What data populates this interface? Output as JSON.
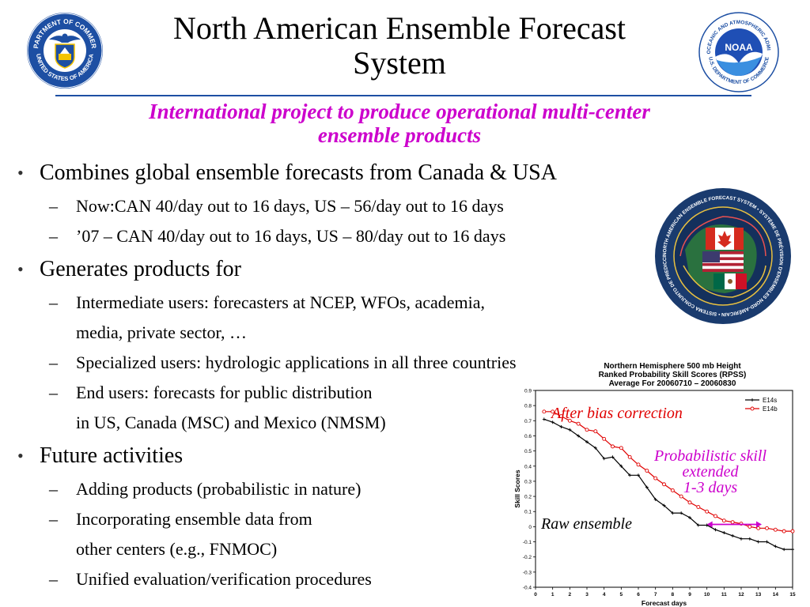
{
  "slide": {
    "title_line1": "North American Ensemble Forecast",
    "title_line2": "System",
    "subtitle_line1": "International project to produce operational multi-center",
    "subtitle_line2": "ensemble products",
    "bullets": [
      {
        "text": "Combines global ensemble forecasts from Canada & USA",
        "subs": [
          {
            "text": "Now:CAN 40/day out to 16 days, US – 56/day out to 16 days"
          },
          {
            "text": "’07 – CAN 40/day out to 16 days, US – 80/day out to 16 days"
          }
        ]
      },
      {
        "text": "Generates products for",
        "subs": [
          {
            "text": "Intermediate users: forecasters at NCEP, WFOs, academia,",
            "cont": "media, private sector, …"
          },
          {
            "text": "Specialized users:  hydrologic applications in all three countries"
          },
          {
            "text": "End users: forecasts for public distribution",
            "cont": "in US, Canada (MSC) and Mexico (NMSM)"
          }
        ]
      },
      {
        "text": "Future activities",
        "subs": [
          {
            "text": "Adding products (probabilistic in nature)"
          },
          {
            "text": "Incorporating ensemble data from",
            "cont": "other centers (e.g., FNMOC)"
          },
          {
            "text": "Unified evaluation/verification procedures"
          }
        ]
      }
    ]
  },
  "logos": {
    "commerce_top": "DEPARTMENT OF COMMERCE",
    "commerce_bottom": "UNITED STATES OF AMERICA",
    "noaa_ring": "NATIONAL OCEANIC AND ATMOSPHERIC ADMINISTRATION",
    "noaa_bottom": "U.S. DEPARTMENT OF COMMERCE",
    "noaa_center": "NOAA",
    "naefs_text": "NORTH AMERICAN ENSEMBLE FORECAST SYSTEM • SYSTÈME DE PRÉVISION D'ENSEMBLES NORD-AMÉRICAIN • SISTEMA CONJUNTO DE PREDICCIÓN NORTEAMERICANO •"
  },
  "colors": {
    "title": "#000000",
    "subtitle": "#cc00cc",
    "e14s": "#000000",
    "e14b": "#e00000",
    "arrow": "#cc00cc"
  },
  "annotations": {
    "bias": "After bias correction",
    "prob_line1": "Probabilistic skill",
    "prob_line2": "extended",
    "prob_line3": "1-3 days",
    "raw": "Raw ensemble"
  },
  "chart_data": {
    "type": "line",
    "title_line1": "Northern Hemisphere 500 mb Height",
    "title_line2": "Ranked Probability Skill Scores (RPSS)",
    "title_line3": "Average For 20060710 – 20060830",
    "xlabel": "Forecast days",
    "ylabel": "Skill Scores",
    "xlim": [
      0,
      15
    ],
    "ylim": [
      -0.4,
      0.9
    ],
    "xticks": [
      "0",
      "1",
      "2",
      "3",
      "4",
      "5",
      "6",
      "7",
      "8",
      "9",
      "10",
      "11",
      "12",
      "13",
      "14",
      "15"
    ],
    "yticks": [
      "0.9",
      "0.8",
      "0.7",
      "0.6",
      "0.5",
      "0.4",
      "0.3",
      "0.2",
      "0.1",
      "0",
      "-0.1",
      "-0.2",
      "-0.3",
      "-0.4"
    ],
    "legend_position": "top-right",
    "series": [
      {
        "name": "E14s",
        "x": [
          0.5,
          1,
          1.5,
          2,
          2.5,
          3,
          3.5,
          4,
          4.5,
          5,
          5.5,
          6,
          6.5,
          7,
          7.5,
          8,
          8.5,
          9,
          9.5,
          10,
          10.5,
          11,
          11.5,
          12,
          12.5,
          13,
          13.5,
          14,
          14.5,
          15
        ],
        "values": [
          0.71,
          0.69,
          0.66,
          0.64,
          0.6,
          0.56,
          0.52,
          0.45,
          0.46,
          0.4,
          0.34,
          0.34,
          0.26,
          0.18,
          0.14,
          0.09,
          0.09,
          0.06,
          0.01,
          0.01,
          -0.02,
          -0.04,
          -0.06,
          -0.08,
          -0.08,
          -0.1,
          -0.1,
          -0.13,
          -0.15,
          -0.15
        ]
      },
      {
        "name": "E14b",
        "x": [
          0.5,
          1,
          1.5,
          2,
          2.5,
          3,
          3.5,
          4,
          4.5,
          5,
          5.5,
          6,
          6.5,
          7,
          7.5,
          8,
          8.5,
          9,
          9.5,
          10,
          10.5,
          11,
          11.5,
          12,
          12.5,
          13,
          13.5,
          14,
          14.5,
          15
        ],
        "values": [
          0.76,
          0.76,
          0.73,
          0.7,
          0.68,
          0.64,
          0.63,
          0.58,
          0.53,
          0.52,
          0.46,
          0.41,
          0.37,
          0.32,
          0.28,
          0.24,
          0.2,
          0.16,
          0.13,
          0.1,
          0.07,
          0.04,
          0.03,
          0.02,
          0.0,
          -0.01,
          -0.01,
          -0.02,
          -0.03,
          -0.03
        ]
      }
    ]
  }
}
